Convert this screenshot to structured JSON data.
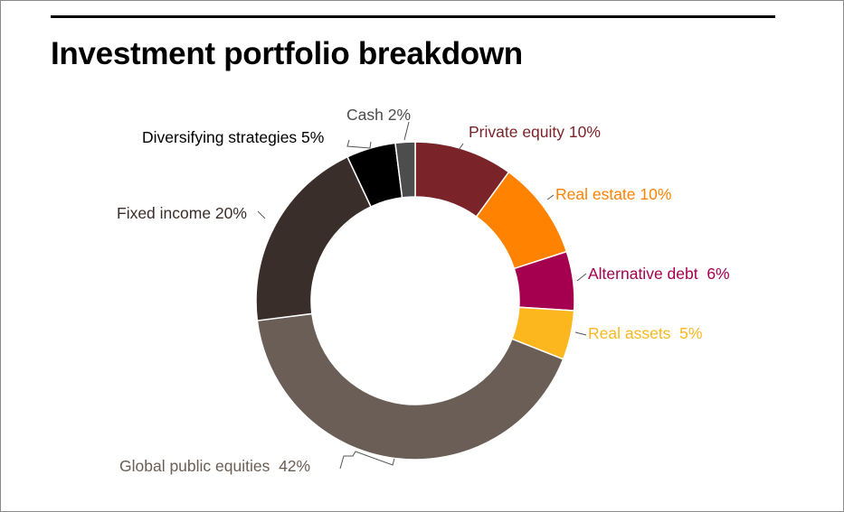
{
  "title": "Investment portfolio breakdown",
  "chart_data": {
    "type": "pie",
    "donut": true,
    "title": "Investment portfolio breakdown",
    "unit": "%",
    "slices": [
      {
        "label": "Private equity",
        "display": "Private equity 10%",
        "value": 10,
        "color": "#7a2328",
        "label_color": "#7a2328"
      },
      {
        "label": "Real estate",
        "display": "Real estate 10%",
        "value": 10,
        "color": "#ff8200",
        "label_color": "#ff8200"
      },
      {
        "label": "Alternative debt",
        "display": "Alternative debt  6%",
        "value": 6,
        "color": "#a4004f",
        "label_color": "#a4004f"
      },
      {
        "label": "Real assets",
        "display": "Real assets  5%",
        "value": 5,
        "color": "#fdb71e",
        "label_color": "#fdb71e"
      },
      {
        "label": "Global public equities",
        "display": "Global public equities  42%",
        "value": 42,
        "color": "#6b5e56",
        "label_color": "#6b5e56"
      },
      {
        "label": "Fixed income",
        "display": "Fixed income 20%",
        "value": 20,
        "color": "#3a2e2b",
        "label_color": "#3a2e2b"
      },
      {
        "label": "Diversifying strategies",
        "display": "Diversifying strategies 5%",
        "value": 5,
        "color": "#000000",
        "label_color": "#000000"
      },
      {
        "label": "Cash",
        "display": "Cash 2%",
        "value": 2,
        "color": "#4d4d4d",
        "label_color": "#4d4d4d"
      }
    ]
  }
}
